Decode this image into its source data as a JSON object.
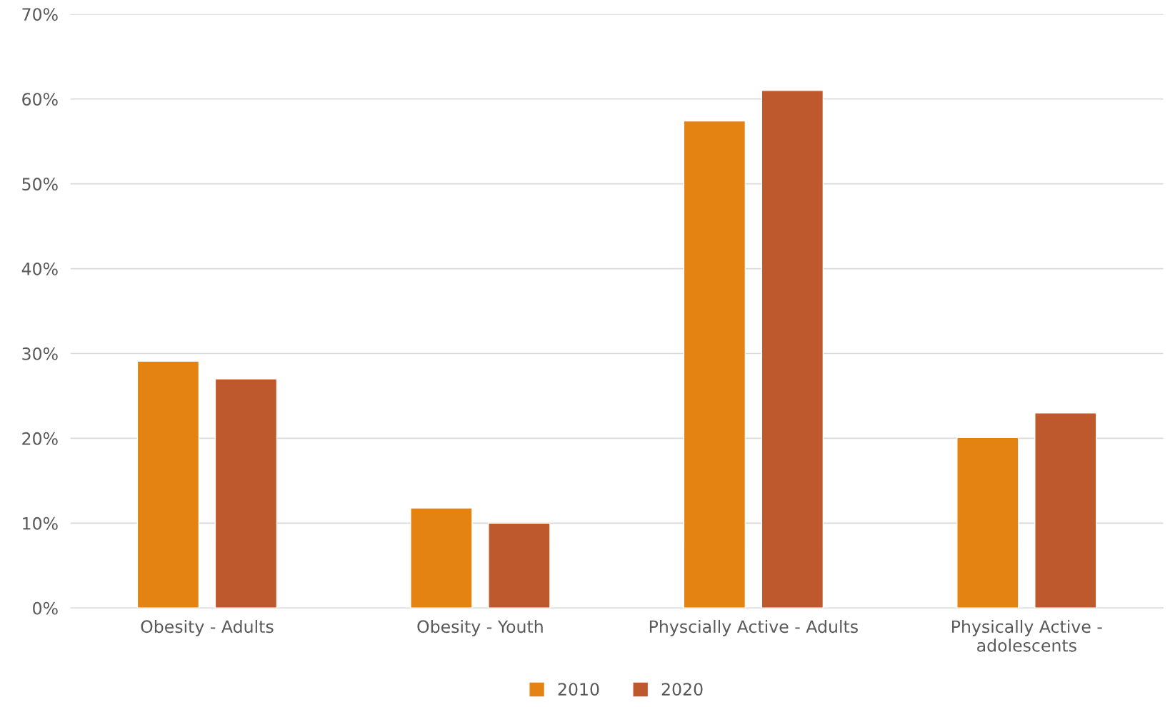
{
  "chart_data": {
    "type": "bar",
    "categories": [
      "Obesity - Adults",
      "Obesity - Youth",
      "Physcially Active - Adults",
      "Physically Active -\nadolescents"
    ],
    "series": [
      {
        "name": "2010",
        "color": "#e58312",
        "values": [
          29.1,
          11.8,
          57.4,
          20.1
        ]
      },
      {
        "name": "2020",
        "color": "#be582d",
        "values": [
          27,
          10,
          61,
          23
        ]
      }
    ],
    "ylim": [
      0,
      70
    ],
    "yticks": [
      {
        "value": 0,
        "label": "0%"
      },
      {
        "value": 10,
        "label": "10%"
      },
      {
        "value": 20,
        "label": "20%"
      },
      {
        "value": 30,
        "label": "30%"
      },
      {
        "value": 40,
        "label": "40%"
      },
      {
        "value": 50,
        "label": "50%"
      },
      {
        "value": 60,
        "label": "60%"
      },
      {
        "value": 70,
        "label": "70%"
      }
    ],
    "grid": "y",
    "legend": "bottom"
  }
}
